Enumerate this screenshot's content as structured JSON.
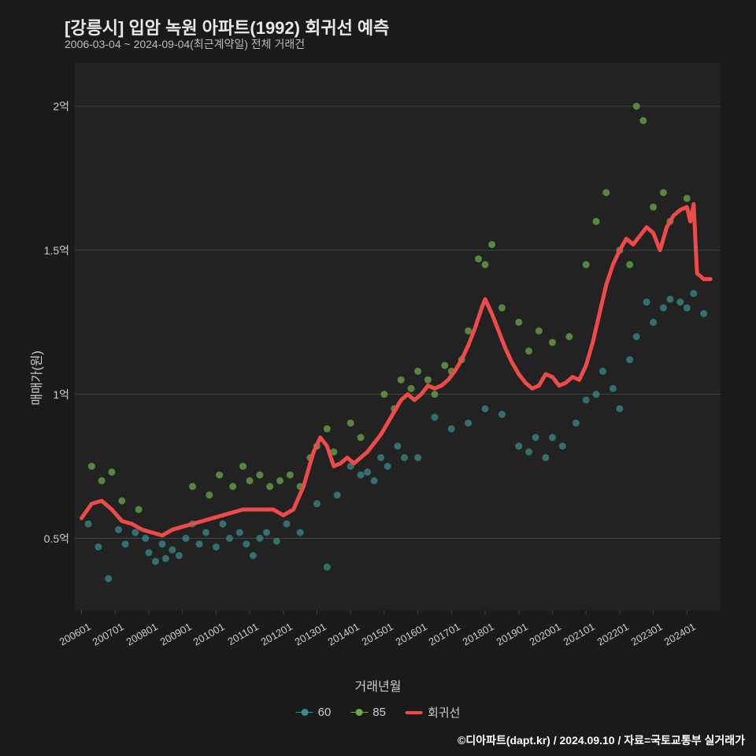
{
  "title": "[강릉시] 입암 녹원 아파트(1992) 회귀선 예측",
  "subtitle": "2006-03-04 ~ 2024-09-04(최근계약일) 전체 거래건",
  "ylabel": "매매가(원)",
  "xlabel": "거래년월",
  "footer": "©디아파트(dapt.kr) / 2024.09.10 / 자료=국토교통부 실거래가",
  "legend": {
    "series60": "60",
    "series85": "85",
    "regression": "회귀선"
  },
  "colors": {
    "background": "#1a1a1a",
    "plot_bg": "#222222",
    "grid": "#444444",
    "text": "#cccccc",
    "series60": "#3a8a8a",
    "series85": "#6aaa4a",
    "regression": "#ef4a4a"
  },
  "chart": {
    "type": "line+scatter",
    "xlim": [
      2005.8,
      2025.0
    ],
    "ylim": [
      0.25,
      2.15
    ],
    "xticks": [
      2006,
      2007,
      2008,
      2009,
      2010,
      2011,
      2012,
      2013,
      2014,
      2015,
      2016,
      2017,
      2018,
      2019,
      2020,
      2021,
      2022,
      2023,
      2024
    ],
    "xtick_labels": [
      "200601",
      "200701",
      "200801",
      "200901",
      "201001",
      "201101",
      "201201",
      "201301",
      "201401",
      "201501",
      "201601",
      "201701",
      "201801",
      "201901",
      "202001",
      "202101",
      "202201",
      "202301",
      "202401"
    ],
    "yticks": [
      0.5,
      1.0,
      1.5,
      2.0
    ],
    "ytick_labels": [
      "0.5억",
      "1억",
      "1.5억",
      "2억"
    ],
    "line_width": 5,
    "marker_size": 4.5,
    "marker_opacity": 0.75
  },
  "series60": [
    [
      2006.2,
      0.55
    ],
    [
      2006.5,
      0.47
    ],
    [
      2006.8,
      0.36
    ],
    [
      2007.1,
      0.53
    ],
    [
      2007.3,
      0.48
    ],
    [
      2007.6,
      0.52
    ],
    [
      2007.9,
      0.5
    ],
    [
      2008.0,
      0.45
    ],
    [
      2008.2,
      0.42
    ],
    [
      2008.4,
      0.48
    ],
    [
      2008.5,
      0.43
    ],
    [
      2008.7,
      0.46
    ],
    [
      2008.9,
      0.44
    ],
    [
      2009.1,
      0.5
    ],
    [
      2009.3,
      0.55
    ],
    [
      2009.5,
      0.48
    ],
    [
      2009.7,
      0.52
    ],
    [
      2010.0,
      0.47
    ],
    [
      2010.2,
      0.55
    ],
    [
      2010.4,
      0.5
    ],
    [
      2010.7,
      0.52
    ],
    [
      2010.9,
      0.48
    ],
    [
      2011.1,
      0.44
    ],
    [
      2011.3,
      0.5
    ],
    [
      2011.5,
      0.52
    ],
    [
      2011.8,
      0.49
    ],
    [
      2012.1,
      0.55
    ],
    [
      2012.5,
      0.52
    ],
    [
      2013.0,
      0.62
    ],
    [
      2013.3,
      0.4
    ],
    [
      2013.6,
      0.65
    ],
    [
      2014.0,
      0.75
    ],
    [
      2014.3,
      0.72
    ],
    [
      2014.5,
      0.73
    ],
    [
      2014.7,
      0.7
    ],
    [
      2014.9,
      0.78
    ],
    [
      2015.1,
      0.75
    ],
    [
      2015.4,
      0.82
    ],
    [
      2015.6,
      0.78
    ],
    [
      2016.0,
      0.78
    ],
    [
      2016.5,
      0.92
    ],
    [
      2017.0,
      0.88
    ],
    [
      2017.5,
      0.9
    ],
    [
      2018.0,
      0.95
    ],
    [
      2018.5,
      0.93
    ],
    [
      2019.0,
      0.82
    ],
    [
      2019.3,
      0.8
    ],
    [
      2019.5,
      0.85
    ],
    [
      2019.8,
      0.78
    ],
    [
      2020.0,
      0.85
    ],
    [
      2020.3,
      0.82
    ],
    [
      2020.7,
      0.9
    ],
    [
      2021.0,
      0.98
    ],
    [
      2021.3,
      1.0
    ],
    [
      2021.5,
      1.08
    ],
    [
      2021.8,
      1.02
    ],
    [
      2022.0,
      0.95
    ],
    [
      2022.3,
      1.12
    ],
    [
      2022.5,
      1.2
    ],
    [
      2022.8,
      1.32
    ],
    [
      2023.0,
      1.25
    ],
    [
      2023.3,
      1.3
    ],
    [
      2023.5,
      1.33
    ],
    [
      2023.8,
      1.32
    ],
    [
      2024.0,
      1.3
    ],
    [
      2024.2,
      1.35
    ],
    [
      2024.5,
      1.28
    ]
  ],
  "series85": [
    [
      2006.3,
      0.75
    ],
    [
      2006.6,
      0.7
    ],
    [
      2006.9,
      0.73
    ],
    [
      2007.2,
      0.63
    ],
    [
      2007.7,
      0.6
    ],
    [
      2009.3,
      0.68
    ],
    [
      2009.8,
      0.65
    ],
    [
      2010.1,
      0.72
    ],
    [
      2010.5,
      0.68
    ],
    [
      2010.8,
      0.75
    ],
    [
      2011.0,
      0.7
    ],
    [
      2011.3,
      0.72
    ],
    [
      2011.6,
      0.68
    ],
    [
      2011.9,
      0.7
    ],
    [
      2012.2,
      0.72
    ],
    [
      2012.5,
      0.68
    ],
    [
      2012.8,
      0.78
    ],
    [
      2013.0,
      0.82
    ],
    [
      2013.3,
      0.88
    ],
    [
      2013.5,
      0.8
    ],
    [
      2014.0,
      0.9
    ],
    [
      2014.3,
      0.85
    ],
    [
      2015.0,
      1.0
    ],
    [
      2015.3,
      0.95
    ],
    [
      2015.5,
      1.05
    ],
    [
      2015.8,
      1.02
    ],
    [
      2016.0,
      1.08
    ],
    [
      2016.3,
      1.05
    ],
    [
      2016.5,
      1.0
    ],
    [
      2016.8,
      1.1
    ],
    [
      2017.0,
      1.08
    ],
    [
      2017.3,
      1.12
    ],
    [
      2017.5,
      1.22
    ],
    [
      2017.8,
      1.47
    ],
    [
      2018.0,
      1.45
    ],
    [
      2018.2,
      1.52
    ],
    [
      2018.5,
      1.3
    ],
    [
      2019.0,
      1.25
    ],
    [
      2019.3,
      1.15
    ],
    [
      2019.6,
      1.22
    ],
    [
      2020.0,
      1.18
    ],
    [
      2020.5,
      1.2
    ],
    [
      2021.0,
      1.45
    ],
    [
      2021.3,
      1.6
    ],
    [
      2021.6,
      1.7
    ],
    [
      2022.0,
      1.5
    ],
    [
      2022.3,
      1.45
    ],
    [
      2022.5,
      2.0
    ],
    [
      2022.7,
      1.95
    ],
    [
      2023.0,
      1.65
    ],
    [
      2023.3,
      1.7
    ],
    [
      2023.5,
      1.6
    ],
    [
      2024.0,
      1.68
    ]
  ],
  "regression": [
    [
      2006.0,
      0.57
    ],
    [
      2006.3,
      0.62
    ],
    [
      2006.6,
      0.63
    ],
    [
      2006.9,
      0.6
    ],
    [
      2007.2,
      0.56
    ],
    [
      2007.5,
      0.55
    ],
    [
      2007.8,
      0.53
    ],
    [
      2008.1,
      0.52
    ],
    [
      2008.4,
      0.51
    ],
    [
      2008.7,
      0.53
    ],
    [
      2009.0,
      0.54
    ],
    [
      2009.3,
      0.55
    ],
    [
      2009.6,
      0.56
    ],
    [
      2009.9,
      0.57
    ],
    [
      2010.2,
      0.58
    ],
    [
      2010.5,
      0.59
    ],
    [
      2010.8,
      0.6
    ],
    [
      2011.1,
      0.6
    ],
    [
      2011.4,
      0.6
    ],
    [
      2011.7,
      0.6
    ],
    [
      2012.0,
      0.58
    ],
    [
      2012.3,
      0.6
    ],
    [
      2012.6,
      0.68
    ],
    [
      2012.9,
      0.8
    ],
    [
      2013.1,
      0.85
    ],
    [
      2013.3,
      0.82
    ],
    [
      2013.5,
      0.75
    ],
    [
      2013.7,
      0.76
    ],
    [
      2013.9,
      0.78
    ],
    [
      2014.1,
      0.76
    ],
    [
      2014.3,
      0.78
    ],
    [
      2014.5,
      0.8
    ],
    [
      2014.7,
      0.83
    ],
    [
      2014.9,
      0.86
    ],
    [
      2015.1,
      0.9
    ],
    [
      2015.3,
      0.94
    ],
    [
      2015.5,
      0.98
    ],
    [
      2015.7,
      1.0
    ],
    [
      2015.9,
      0.98
    ],
    [
      2016.1,
      1.0
    ],
    [
      2016.3,
      1.03
    ],
    [
      2016.5,
      1.02
    ],
    [
      2016.7,
      1.03
    ],
    [
      2016.9,
      1.05
    ],
    [
      2017.1,
      1.08
    ],
    [
      2017.3,
      1.12
    ],
    [
      2017.5,
      1.17
    ],
    [
      2017.7,
      1.23
    ],
    [
      2017.9,
      1.3
    ],
    [
      2018.0,
      1.33
    ],
    [
      2018.2,
      1.28
    ],
    [
      2018.4,
      1.22
    ],
    [
      2018.6,
      1.16
    ],
    [
      2018.8,
      1.11
    ],
    [
      2019.0,
      1.07
    ],
    [
      2019.2,
      1.04
    ],
    [
      2019.4,
      1.02
    ],
    [
      2019.6,
      1.03
    ],
    [
      2019.8,
      1.07
    ],
    [
      2020.0,
      1.06
    ],
    [
      2020.2,
      1.03
    ],
    [
      2020.4,
      1.04
    ],
    [
      2020.6,
      1.06
    ],
    [
      2020.8,
      1.05
    ],
    [
      2021.0,
      1.1
    ],
    [
      2021.2,
      1.18
    ],
    [
      2021.4,
      1.28
    ],
    [
      2021.6,
      1.38
    ],
    [
      2021.8,
      1.45
    ],
    [
      2022.0,
      1.5
    ],
    [
      2022.2,
      1.54
    ],
    [
      2022.4,
      1.52
    ],
    [
      2022.6,
      1.55
    ],
    [
      2022.8,
      1.58
    ],
    [
      2023.0,
      1.56
    ],
    [
      2023.2,
      1.5
    ],
    [
      2023.4,
      1.58
    ],
    [
      2023.6,
      1.62
    ],
    [
      2023.8,
      1.64
    ],
    [
      2024.0,
      1.65
    ],
    [
      2024.1,
      1.6
    ],
    [
      2024.2,
      1.66
    ],
    [
      2024.3,
      1.42
    ],
    [
      2024.5,
      1.4
    ],
    [
      2024.7,
      1.4
    ]
  ]
}
